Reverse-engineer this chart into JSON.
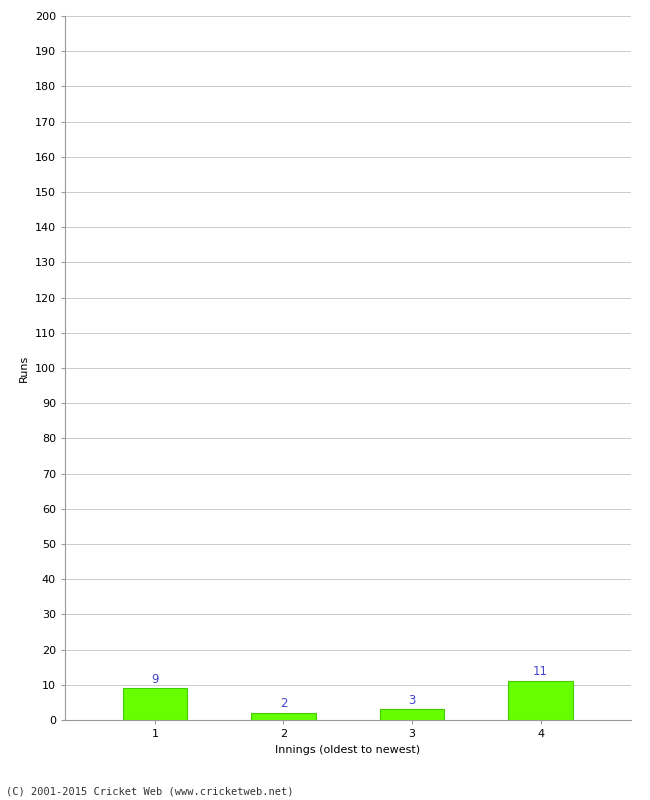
{
  "categories": [
    "1",
    "2",
    "3",
    "4"
  ],
  "values": [
    9,
    2,
    3,
    11
  ],
  "bar_color": "#66ff00",
  "bar_edge_color": "#44cc00",
  "ylabel": "Runs",
  "xlabel": "Innings (oldest to newest)",
  "ylim": [
    0,
    200
  ],
  "yticks": [
    0,
    10,
    20,
    30,
    40,
    50,
    60,
    70,
    80,
    90,
    100,
    110,
    120,
    130,
    140,
    150,
    160,
    170,
    180,
    190,
    200
  ],
  "label_color": "#4444cc",
  "label_fontsize": 8.5,
  "axis_label_fontsize": 8,
  "tick_fontsize": 8,
  "footer_text": "(C) 2001-2015 Cricket Web (www.cricketweb.net)",
  "footer_fontsize": 7.5,
  "background_color": "#ffffff",
  "grid_color": "#cccccc",
  "bar_width": 0.5
}
